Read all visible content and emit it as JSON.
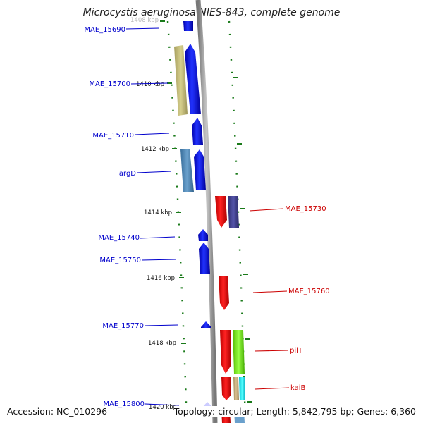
{
  "title": "Microcystis aeruginosa NIES-843, complete genome",
  "accession": "Accession: NC_010296",
  "topology": "Topology: circular; Length: 5,842,795 bp; Genes: 6,360",
  "colors": {
    "forward_label": "#0000cc",
    "reverse_label": "#cc0000",
    "backbone": "#909090",
    "tick": "#1a7a1a"
  },
  "scale_labels": [
    "1408 kbp",
    "1410 kbp",
    "1412 kbp",
    "1414 kbp",
    "1416 kbp",
    "1418 kbp",
    "1420 kbp"
  ],
  "gene_labels": {
    "forward": [
      "MAE_15690",
      "MAE_15700",
      "MAE_15710",
      "argD",
      "MAE_15740",
      "MAE_15750",
      "MAE_15770",
      "MAE_15800"
    ],
    "reverse": [
      "MAE_15730",
      "MAE_15760",
      "pilT",
      "kaiB"
    ]
  }
}
